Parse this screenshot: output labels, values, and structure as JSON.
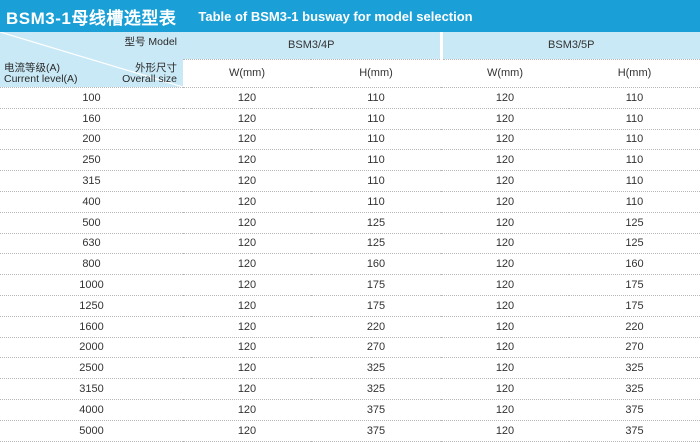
{
  "title": {
    "cn": "BSM3-1母线槽选型表",
    "en": "Table of BSM3-1 busway for model selection"
  },
  "header": {
    "model_label": "型号 Model",
    "size_label_cn": "外形尺寸",
    "size_label_en": "Overall size",
    "current_label_cn": "电流等级(A)",
    "current_label_en": "Current level(A)",
    "models": [
      "BSM3/4P",
      "BSM3/5P"
    ],
    "width_label": "W(mm)",
    "height_label": "H(mm)"
  },
  "rows": [
    {
      "current": "100",
      "w4": "120",
      "h4": "110",
      "w5": "120",
      "h5": "110"
    },
    {
      "current": "160",
      "w4": "120",
      "h4": "110",
      "w5": "120",
      "h5": "110"
    },
    {
      "current": "200",
      "w4": "120",
      "h4": "110",
      "w5": "120",
      "h5": "110"
    },
    {
      "current": "250",
      "w4": "120",
      "h4": "110",
      "w5": "120",
      "h5": "110"
    },
    {
      "current": "315",
      "w4": "120",
      "h4": "110",
      "w5": "120",
      "h5": "110"
    },
    {
      "current": "400",
      "w4": "120",
      "h4": "110",
      "w5": "120",
      "h5": "110"
    },
    {
      "current": "500",
      "w4": "120",
      "h4": "125",
      "w5": "120",
      "h5": "125"
    },
    {
      "current": "630",
      "w4": "120",
      "h4": "125",
      "w5": "120",
      "h5": "125"
    },
    {
      "current": "800",
      "w4": "120",
      "h4": "160",
      "w5": "120",
      "h5": "160"
    },
    {
      "current": "1000",
      "w4": "120",
      "h4": "175",
      "w5": "120",
      "h5": "175"
    },
    {
      "current": "1250",
      "w4": "120",
      "h4": "175",
      "w5": "120",
      "h5": "175"
    },
    {
      "current": "1600",
      "w4": "120",
      "h4": "220",
      "w5": "120",
      "h5": "220"
    },
    {
      "current": "2000",
      "w4": "120",
      "h4": "270",
      "w5": "120",
      "h5": "270"
    },
    {
      "current": "2500",
      "w4": "120",
      "h4": "325",
      "w5": "120",
      "h5": "325"
    },
    {
      "current": "3150",
      "w4": "120",
      "h4": "325",
      "w5": "120",
      "h5": "325"
    },
    {
      "current": "4000",
      "w4": "120",
      "h4": "375",
      "w5": "120",
      "h5": "375"
    },
    {
      "current": "5000",
      "w4": "120",
      "h4": "375",
      "w5": "120",
      "h5": "375"
    }
  ],
  "colors": {
    "title_bar": "#1a9fd6",
    "header_fill": "#c9e9f6"
  }
}
